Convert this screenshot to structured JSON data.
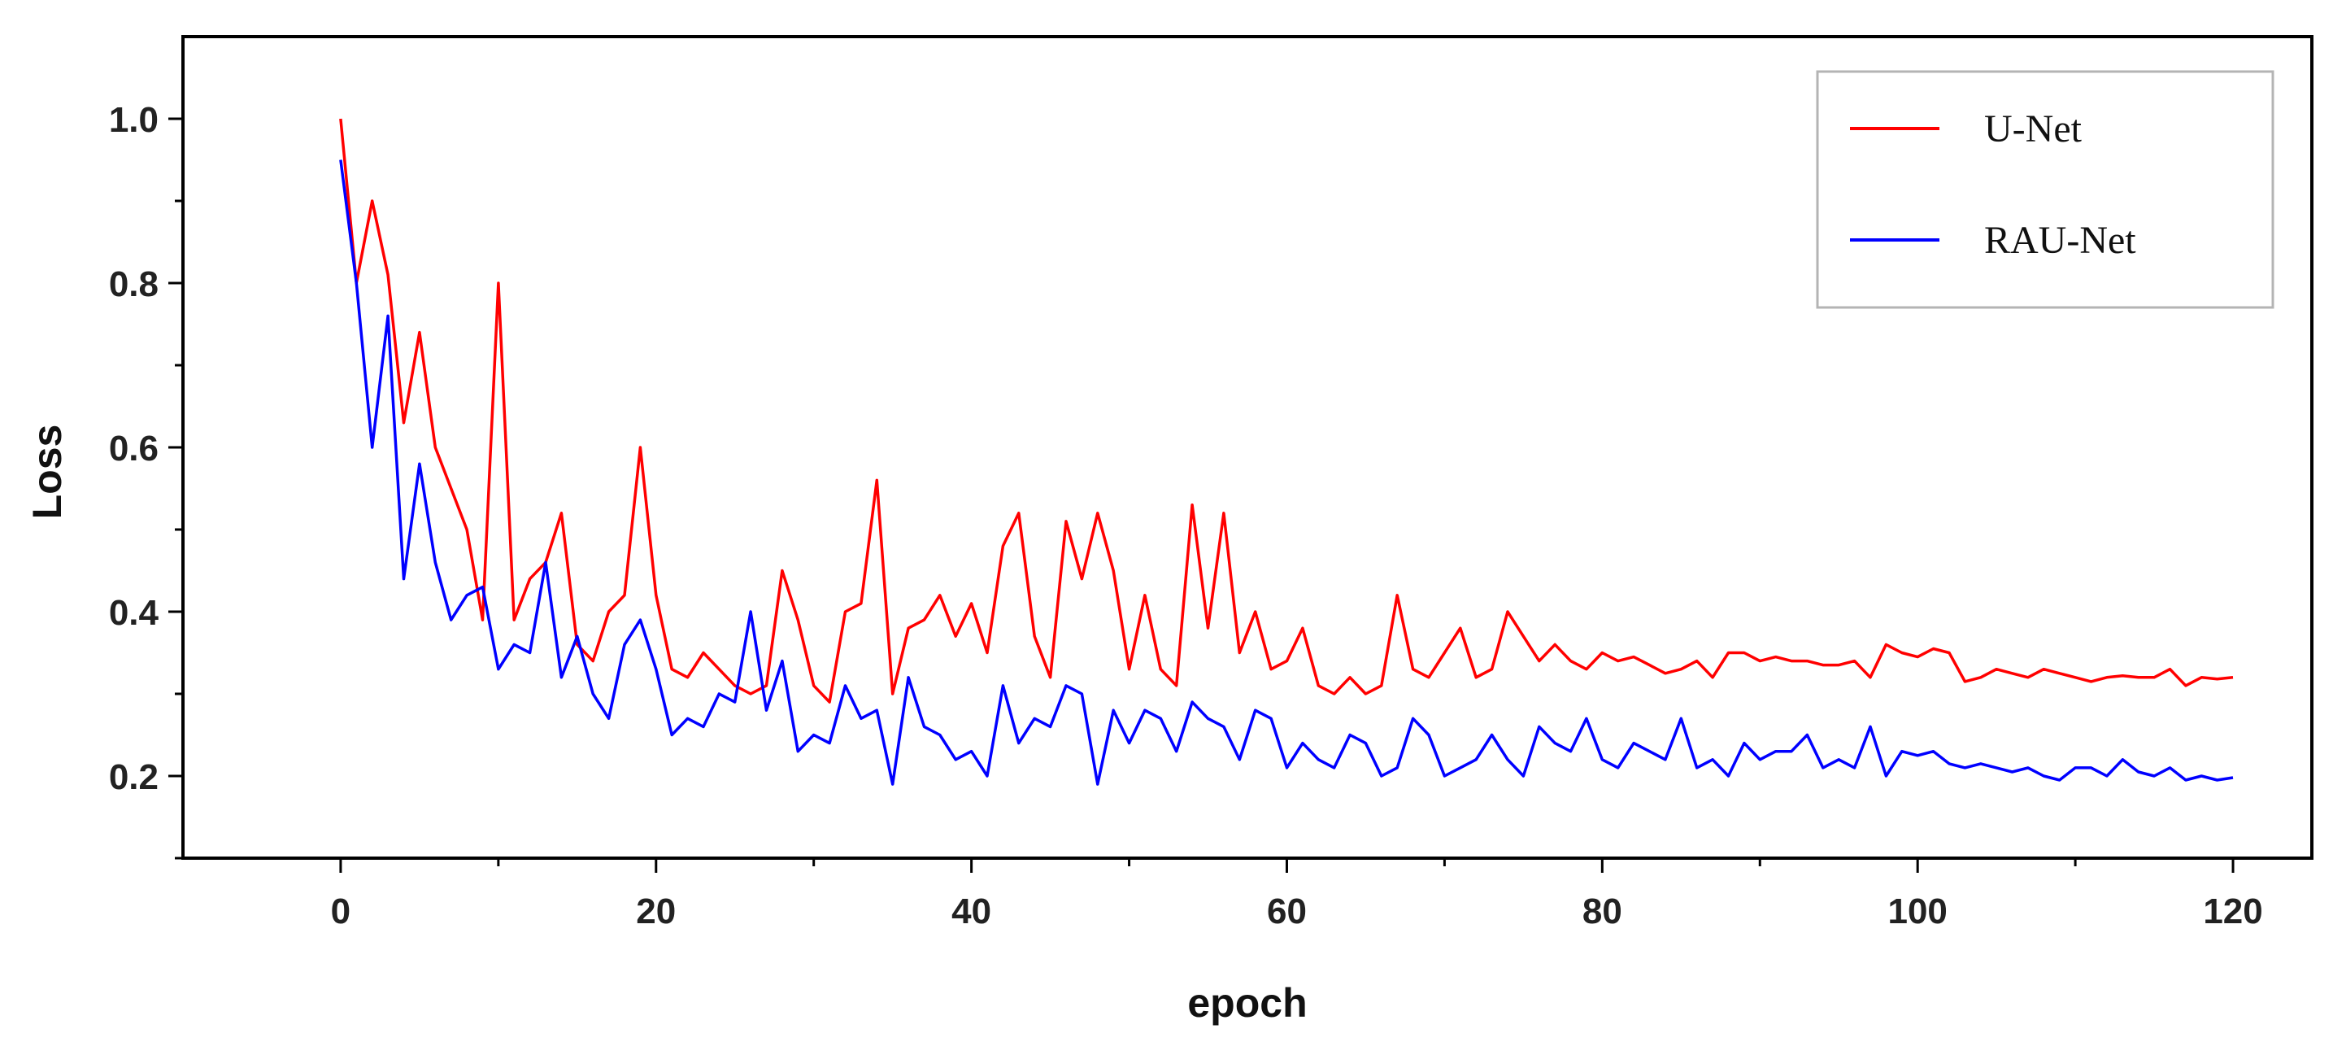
{
  "chart_data": {
    "type": "line",
    "xlabel": "epoch",
    "ylabel": "Loss",
    "xlim": [
      -10,
      125
    ],
    "ylim": [
      0.1,
      1.1
    ],
    "x_ticks": [
      "0",
      "20",
      "40",
      "60",
      "80",
      "100",
      "120"
    ],
    "y_ticks": [
      "0.2",
      "0.4",
      "0.6",
      "0.8",
      "1.0"
    ],
    "legend_position": "top-right",
    "grid": false,
    "series": [
      {
        "name": "U-Net",
        "color": "#ff0000",
        "values": [
          1.0,
          0.8,
          0.9,
          0.81,
          0.63,
          0.74,
          0.6,
          0.55,
          0.5,
          0.39,
          0.8,
          0.39,
          0.44,
          0.46,
          0.52,
          0.36,
          0.34,
          0.4,
          0.42,
          0.6,
          0.42,
          0.33,
          0.32,
          0.35,
          0.33,
          0.31,
          0.3,
          0.31,
          0.45,
          0.39,
          0.31,
          0.29,
          0.4,
          0.41,
          0.56,
          0.3,
          0.38,
          0.39,
          0.42,
          0.37,
          0.41,
          0.35,
          0.48,
          0.52,
          0.37,
          0.32,
          0.51,
          0.44,
          0.52,
          0.45,
          0.33,
          0.42,
          0.33,
          0.31,
          0.53,
          0.38,
          0.52,
          0.35,
          0.4,
          0.33,
          0.34,
          0.38,
          0.31,
          0.3,
          0.32,
          0.3,
          0.31,
          0.42,
          0.33,
          0.32,
          0.35,
          0.38,
          0.32,
          0.33,
          0.4,
          0.37,
          0.34,
          0.36,
          0.34,
          0.33,
          0.35,
          0.34,
          0.345,
          0.335,
          0.325,
          0.33,
          0.34,
          0.32,
          0.35,
          0.35,
          0.34,
          0.345,
          0.34,
          0.34,
          0.335,
          0.335,
          0.34,
          0.32,
          0.36,
          0.35,
          0.345,
          0.355,
          0.35,
          0.315,
          0.32,
          0.33,
          0.325,
          0.32,
          0.33,
          0.325,
          0.32,
          0.315,
          0.32,
          0.322,
          0.32,
          0.32,
          0.33,
          0.31,
          0.32,
          0.318,
          0.32
        ]
      },
      {
        "name": "RAU-Net",
        "color": "#0000ff",
        "values": [
          0.95,
          0.8,
          0.6,
          0.76,
          0.44,
          0.58,
          0.46,
          0.39,
          0.42,
          0.43,
          0.33,
          0.36,
          0.35,
          0.46,
          0.32,
          0.37,
          0.3,
          0.27,
          0.36,
          0.39,
          0.33,
          0.25,
          0.27,
          0.26,
          0.3,
          0.29,
          0.4,
          0.28,
          0.34,
          0.23,
          0.25,
          0.24,
          0.31,
          0.27,
          0.28,
          0.19,
          0.32,
          0.26,
          0.25,
          0.22,
          0.23,
          0.2,
          0.31,
          0.24,
          0.27,
          0.26,
          0.31,
          0.3,
          0.19,
          0.28,
          0.24,
          0.28,
          0.27,
          0.23,
          0.29,
          0.27,
          0.26,
          0.22,
          0.28,
          0.27,
          0.21,
          0.24,
          0.22,
          0.21,
          0.25,
          0.24,
          0.2,
          0.21,
          0.27,
          0.25,
          0.2,
          0.21,
          0.22,
          0.25,
          0.22,
          0.2,
          0.26,
          0.24,
          0.23,
          0.27,
          0.22,
          0.21,
          0.24,
          0.23,
          0.22,
          0.27,
          0.21,
          0.22,
          0.2,
          0.24,
          0.22,
          0.23,
          0.23,
          0.25,
          0.21,
          0.22,
          0.21,
          0.26,
          0.2,
          0.23,
          0.225,
          0.23,
          0.215,
          0.21,
          0.215,
          0.21,
          0.205,
          0.21,
          0.2,
          0.195,
          0.21,
          0.21,
          0.2,
          0.22,
          0.205,
          0.2,
          0.21,
          0.195,
          0.2,
          0.195,
          0.198
        ]
      }
    ]
  }
}
